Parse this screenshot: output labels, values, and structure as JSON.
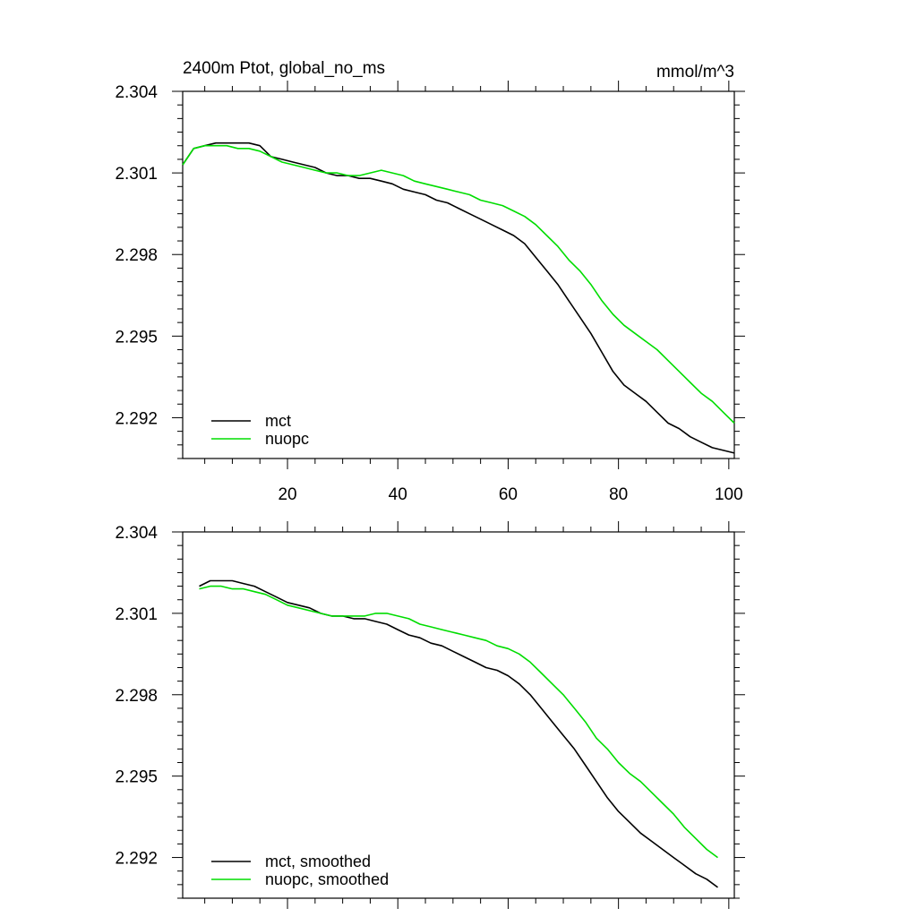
{
  "chart_data": [
    {
      "type": "line",
      "title": "2400m Ptot, global_no_ms",
      "units": "mmol/m^3",
      "xlim": [
        1,
        101
      ],
      "ylim": [
        2.2905,
        2.304
      ],
      "xticks": [
        20,
        40,
        60,
        80,
        100
      ],
      "xtick_labels": [
        "20",
        "40",
        "60",
        "80",
        "100"
      ],
      "yticks": [
        2.292,
        2.295,
        2.298,
        2.301,
        2.304
      ],
      "ytick_labels": [
        "2.292",
        "2.295",
        "2.298",
        "2.301",
        "2.304"
      ],
      "legend_position": "bottom-left",
      "series": [
        {
          "name": "mct",
          "color": "#000000",
          "points": [
            [
              1,
              2.3013
            ],
            [
              3,
              2.3019
            ],
            [
              5,
              2.302
            ],
            [
              7,
              2.3021
            ],
            [
              9,
              2.3021
            ],
            [
              11,
              2.3021
            ],
            [
              13,
              2.3021
            ],
            [
              15,
              2.302
            ],
            [
              17,
              2.3016
            ],
            [
              19,
              2.3015
            ],
            [
              21,
              2.3014
            ],
            [
              23,
              2.3013
            ],
            [
              25,
              2.3012
            ],
            [
              27,
              2.301
            ],
            [
              29,
              2.3009
            ],
            [
              31,
              2.3009
            ],
            [
              33,
              2.3008
            ],
            [
              35,
              2.3008
            ],
            [
              37,
              2.3007
            ],
            [
              39,
              2.3006
            ],
            [
              41,
              2.3004
            ],
            [
              43,
              2.3003
            ],
            [
              45,
              2.3002
            ],
            [
              47,
              2.3
            ],
            [
              49,
              2.2999
            ],
            [
              51,
              2.2997
            ],
            [
              53,
              2.2995
            ],
            [
              55,
              2.2993
            ],
            [
              57,
              2.2991
            ],
            [
              59,
              2.2989
            ],
            [
              61,
              2.2987
            ],
            [
              63,
              2.2984
            ],
            [
              65,
              2.2979
            ],
            [
              67,
              2.2974
            ],
            [
              69,
              2.2969
            ],
            [
              71,
              2.2963
            ],
            [
              73,
              2.2957
            ],
            [
              75,
              2.2951
            ],
            [
              77,
              2.2944
            ],
            [
              79,
              2.2937
            ],
            [
              81,
              2.2932
            ],
            [
              83,
              2.2929
            ],
            [
              85,
              2.2926
            ],
            [
              87,
              2.2922
            ],
            [
              89,
              2.2918
            ],
            [
              91,
              2.2916
            ],
            [
              93,
              2.2913
            ],
            [
              95,
              2.2911
            ],
            [
              97,
              2.2909
            ],
            [
              99,
              2.2908
            ],
            [
              101,
              2.2907
            ]
          ]
        },
        {
          "name": "nuopc",
          "color": "#00dd00",
          "points": [
            [
              1,
              2.3013
            ],
            [
              3,
              2.3019
            ],
            [
              5,
              2.302
            ],
            [
              7,
              2.302
            ],
            [
              9,
              2.302
            ],
            [
              11,
              2.3019
            ],
            [
              13,
              2.3019
            ],
            [
              15,
              2.3018
            ],
            [
              17,
              2.3016
            ],
            [
              19,
              2.3014
            ],
            [
              21,
              2.3013
            ],
            [
              23,
              2.3012
            ],
            [
              25,
              2.3011
            ],
            [
              27,
              2.301
            ],
            [
              29,
              2.301
            ],
            [
              31,
              2.3009
            ],
            [
              33,
              2.3009
            ],
            [
              35,
              2.301
            ],
            [
              37,
              2.3011
            ],
            [
              39,
              2.301
            ],
            [
              41,
              2.3009
            ],
            [
              43,
              2.3007
            ],
            [
              45,
              2.3006
            ],
            [
              47,
              2.3005
            ],
            [
              49,
              2.3004
            ],
            [
              51,
              2.3003
            ],
            [
              53,
              2.3002
            ],
            [
              55,
              2.3
            ],
            [
              57,
              2.2999
            ],
            [
              59,
              2.2998
            ],
            [
              61,
              2.2996
            ],
            [
              63,
              2.2994
            ],
            [
              65,
              2.2991
            ],
            [
              67,
              2.2987
            ],
            [
              69,
              2.2983
            ],
            [
              71,
              2.2978
            ],
            [
              73,
              2.2974
            ],
            [
              75,
              2.2969
            ],
            [
              77,
              2.2963
            ],
            [
              79,
              2.2958
            ],
            [
              81,
              2.2954
            ],
            [
              83,
              2.2951
            ],
            [
              85,
              2.2948
            ],
            [
              87,
              2.2945
            ],
            [
              89,
              2.2941
            ],
            [
              91,
              2.2937
            ],
            [
              93,
              2.2933
            ],
            [
              95,
              2.2929
            ],
            [
              97,
              2.2926
            ],
            [
              99,
              2.2922
            ],
            [
              101,
              2.2918
            ]
          ]
        }
      ]
    },
    {
      "type": "line",
      "xlim": [
        1,
        101
      ],
      "ylim": [
        2.2905,
        2.304
      ],
      "xticks": [
        20,
        40,
        60,
        80,
        100
      ],
      "yticks": [
        2.292,
        2.295,
        2.298,
        2.301,
        2.304
      ],
      "ytick_labels": [
        "2.292",
        "2.295",
        "2.298",
        "2.301",
        "2.304"
      ],
      "legend_position": "bottom-left",
      "series": [
        {
          "name": "mct, smoothed",
          "color": "#000000",
          "points": [
            [
              4,
              2.302
            ],
            [
              6,
              2.3022
            ],
            [
              8,
              2.3022
            ],
            [
              10,
              2.3022
            ],
            [
              12,
              2.3021
            ],
            [
              14,
              2.302
            ],
            [
              16,
              2.3018
            ],
            [
              18,
              2.3016
            ],
            [
              20,
              2.3014
            ],
            [
              22,
              2.3013
            ],
            [
              24,
              2.3012
            ],
            [
              26,
              2.301
            ],
            [
              28,
              2.3009
            ],
            [
              30,
              2.3009
            ],
            [
              32,
              2.3008
            ],
            [
              34,
              2.3008
            ],
            [
              36,
              2.3007
            ],
            [
              38,
              2.3006
            ],
            [
              40,
              2.3004
            ],
            [
              42,
              2.3002
            ],
            [
              44,
              2.3001
            ],
            [
              46,
              2.2999
            ],
            [
              48,
              2.2998
            ],
            [
              50,
              2.2996
            ],
            [
              52,
              2.2994
            ],
            [
              54,
              2.2992
            ],
            [
              56,
              2.299
            ],
            [
              58,
              2.2989
            ],
            [
              60,
              2.2987
            ],
            [
              62,
              2.2984
            ],
            [
              64,
              2.298
            ],
            [
              66,
              2.2975
            ],
            [
              68,
              2.297
            ],
            [
              70,
              2.2965
            ],
            [
              72,
              2.296
            ],
            [
              74,
              2.2954
            ],
            [
              76,
              2.2948
            ],
            [
              78,
              2.2942
            ],
            [
              80,
              2.2937
            ],
            [
              82,
              2.2933
            ],
            [
              84,
              2.2929
            ],
            [
              86,
              2.2926
            ],
            [
              88,
              2.2923
            ],
            [
              90,
              2.292
            ],
            [
              92,
              2.2917
            ],
            [
              94,
              2.2914
            ],
            [
              96,
              2.2912
            ],
            [
              98,
              2.2909
            ]
          ]
        },
        {
          "name": "nuopc, smoothed",
          "color": "#00dd00",
          "points": [
            [
              4,
              2.3019
            ],
            [
              6,
              2.302
            ],
            [
              8,
              2.302
            ],
            [
              10,
              2.3019
            ],
            [
              12,
              2.3019
            ],
            [
              14,
              2.3018
            ],
            [
              16,
              2.3017
            ],
            [
              18,
              2.3015
            ],
            [
              20,
              2.3013
            ],
            [
              22,
              2.3012
            ],
            [
              24,
              2.3011
            ],
            [
              26,
              2.301
            ],
            [
              28,
              2.3009
            ],
            [
              30,
              2.3009
            ],
            [
              32,
              2.3009
            ],
            [
              34,
              2.3009
            ],
            [
              36,
              2.301
            ],
            [
              38,
              2.301
            ],
            [
              40,
              2.3009
            ],
            [
              42,
              2.3008
            ],
            [
              44,
              2.3006
            ],
            [
              46,
              2.3005
            ],
            [
              48,
              2.3004
            ],
            [
              50,
              2.3003
            ],
            [
              52,
              2.3002
            ],
            [
              54,
              2.3001
            ],
            [
              56,
              2.3
            ],
            [
              58,
              2.2998
            ],
            [
              60,
              2.2997
            ],
            [
              62,
              2.2995
            ],
            [
              64,
              2.2992
            ],
            [
              66,
              2.2988
            ],
            [
              68,
              2.2984
            ],
            [
              70,
              2.298
            ],
            [
              72,
              2.2975
            ],
            [
              74,
              2.297
            ],
            [
              76,
              2.2964
            ],
            [
              78,
              2.296
            ],
            [
              80,
              2.2955
            ],
            [
              82,
              2.2951
            ],
            [
              84,
              2.2948
            ],
            [
              86,
              2.2944
            ],
            [
              88,
              2.294
            ],
            [
              90,
              2.2936
            ],
            [
              92,
              2.2931
            ],
            [
              94,
              2.2927
            ],
            [
              96,
              2.2923
            ],
            [
              98,
              2.292
            ]
          ]
        }
      ]
    }
  ]
}
